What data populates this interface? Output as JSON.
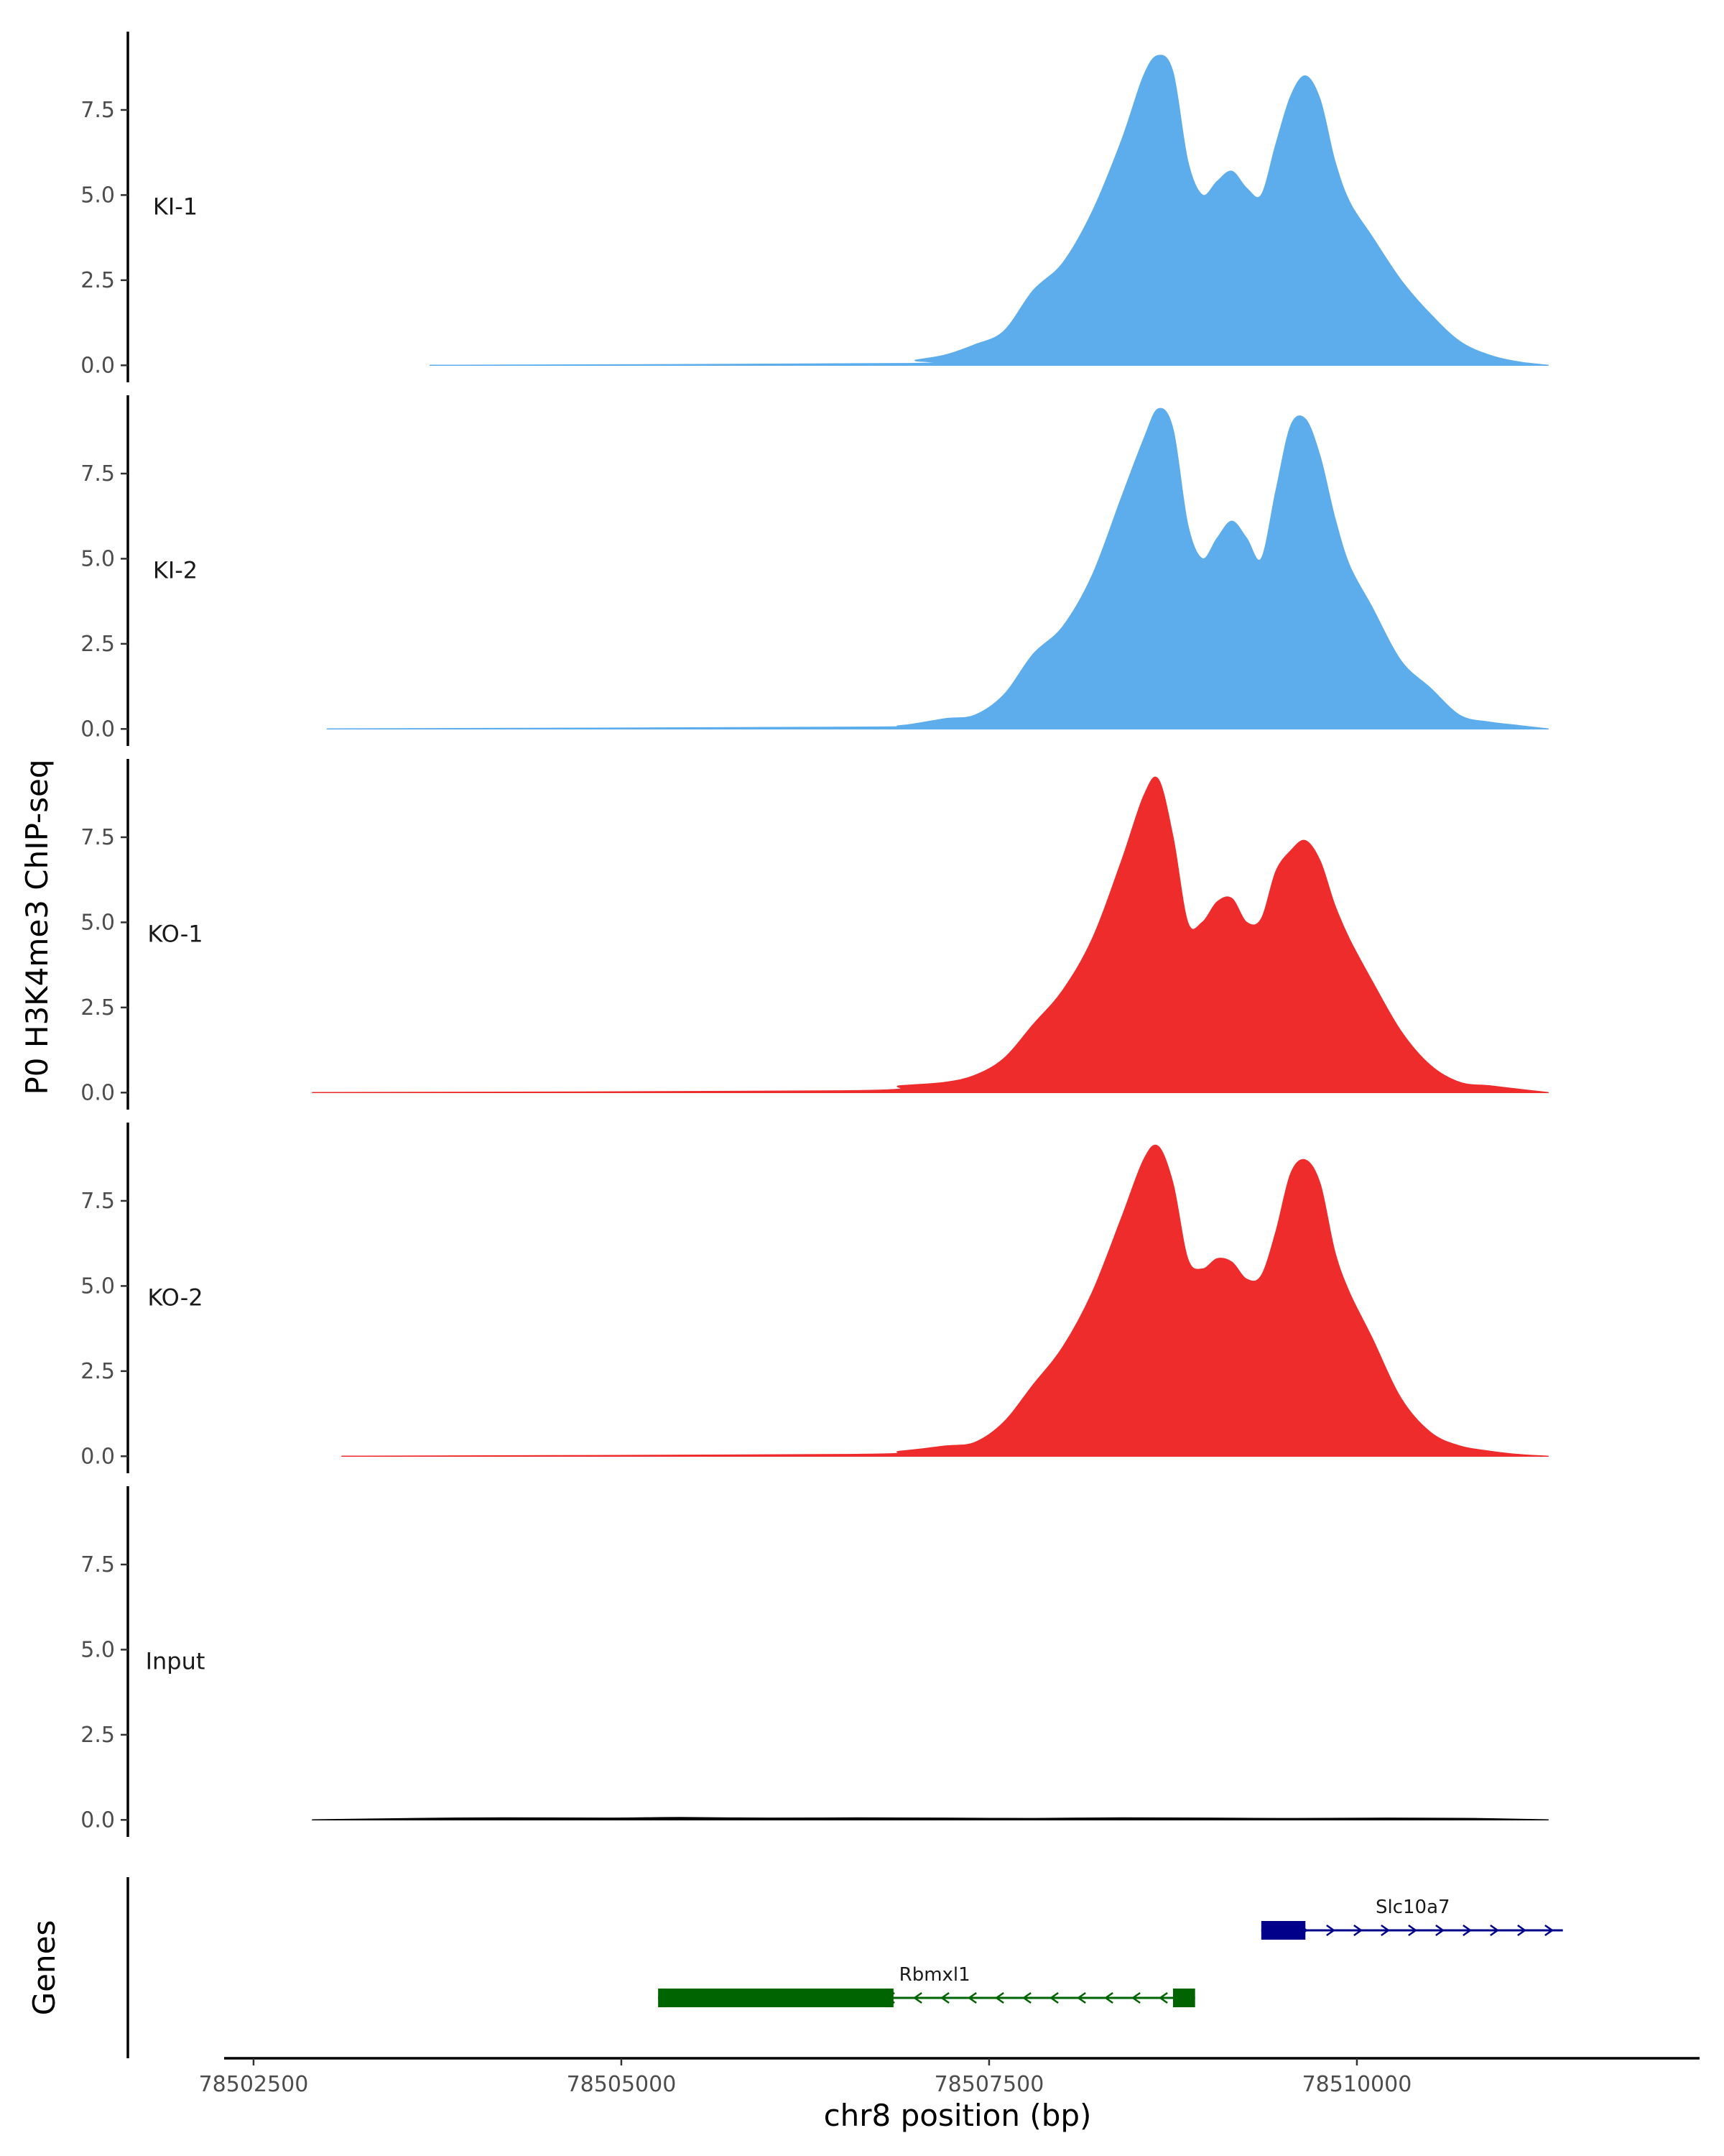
{
  "chart_data": {
    "type": "area",
    "ylabel": "P0 H3K4me3 ChIP-seq",
    "xlabel": "chr8 position (bp)",
    "xlim": [
      78502300,
      78512300
    ],
    "ylim": [
      -0.5,
      9.8
    ],
    "y_ticks": [
      0.0,
      2.5,
      5.0,
      7.5
    ],
    "y_tick_labels": [
      "0.0",
      "2.5",
      "5.0",
      "7.5"
    ],
    "x_ticks": [
      78502500,
      78505000,
      78507500,
      78510000
    ],
    "x_tick_labels": [
      "78502500",
      "78505000",
      "78507500",
      "78510000"
    ],
    "colors": {
      "ki": "#5DADEC",
      "ko": "#EE2C2C",
      "input": "#000000",
      "slc10a7": "#00008B",
      "rbmxl1": "#006400",
      "axis": "#000000"
    },
    "tracks": [
      {
        "name": "KI-1",
        "color": "#5DADEC",
        "x_start": 78503700,
        "x_end": 78511300,
        "x": [
          78503700,
          78506900,
          78507000,
          78507200,
          78507400,
          78507600,
          78507800,
          78508000,
          78508200,
          78508400,
          78508550,
          78508650,
          78508750,
          78508850,
          78508950,
          78509050,
          78509150,
          78509250,
          78509350,
          78509450,
          78509550,
          78509650,
          78509750,
          78509850,
          78509950,
          78510100,
          78510300,
          78510500,
          78510700,
          78510900,
          78511100,
          78511300
        ],
        "y": [
          0.0,
          0.05,
          0.15,
          0.3,
          0.6,
          1.0,
          2.2,
          3.0,
          4.5,
          6.6,
          8.5,
          9.1,
          8.6,
          6.0,
          5.0,
          5.4,
          5.7,
          5.2,
          5.0,
          6.5,
          7.9,
          8.5,
          7.8,
          6.0,
          4.8,
          3.8,
          2.5,
          1.5,
          0.7,
          0.3,
          0.1,
          0.0
        ]
      },
      {
        "name": "KI-2",
        "color": "#5DADEC",
        "x_start": 78503000,
        "x_end": 78511300,
        "x": [
          78503000,
          78506500,
          78506900,
          78507200,
          78507400,
          78507600,
          78507800,
          78508000,
          78508200,
          78508400,
          78508550,
          78508650,
          78508750,
          78508850,
          78508950,
          78509050,
          78509150,
          78509250,
          78509350,
          78509450,
          78509550,
          78509650,
          78509750,
          78509850,
          78509950,
          78510100,
          78510300,
          78510500,
          78510700,
          78510900,
          78511100,
          78511300
        ],
        "y": [
          0.0,
          0.05,
          0.1,
          0.3,
          0.4,
          1.0,
          2.2,
          3.0,
          4.5,
          6.8,
          8.5,
          9.4,
          8.8,
          6.0,
          5.0,
          5.6,
          6.1,
          5.6,
          5.0,
          7.0,
          8.9,
          9.1,
          8.0,
          6.2,
          4.8,
          3.6,
          2.0,
          1.2,
          0.4,
          0.2,
          0.1,
          0.0
        ]
      },
      {
        "name": "KO-1",
        "color": "#EE2C2C",
        "x_start": 78502900,
        "x_end": 78511300,
        "x": [
          78502900,
          78506500,
          78506900,
          78507200,
          78507400,
          78507600,
          78507800,
          78508000,
          78508200,
          78508400,
          78508550,
          78508650,
          78508750,
          78508850,
          78508950,
          78509050,
          78509150,
          78509250,
          78509350,
          78509450,
          78509550,
          78509650,
          78509750,
          78509850,
          78509950,
          78510100,
          78510300,
          78510500,
          78510700,
          78510900,
          78511100,
          78511300
        ],
        "y": [
          0.0,
          0.05,
          0.2,
          0.3,
          0.5,
          1.0,
          2.0,
          3.0,
          4.5,
          6.8,
          8.7,
          9.2,
          7.5,
          5.0,
          5.0,
          5.6,
          5.7,
          5.0,
          5.1,
          6.5,
          7.1,
          7.4,
          6.8,
          5.5,
          4.5,
          3.3,
          1.8,
          0.8,
          0.3,
          0.2,
          0.1,
          0.0
        ]
      },
      {
        "name": "KO-2",
        "color": "#EE2C2C",
        "x_start": 78503100,
        "x_end": 78511300,
        "x": [
          78503100,
          78506500,
          78506900,
          78507200,
          78507400,
          78507600,
          78507800,
          78508000,
          78508200,
          78508400,
          78508550,
          78508650,
          78508750,
          78508850,
          78508950,
          78509050,
          78509150,
          78509250,
          78509350,
          78509450,
          78509550,
          78509650,
          78509750,
          78509850,
          78509950,
          78510100,
          78510300,
          78510500,
          78510700,
          78510900,
          78511100,
          78511300
        ],
        "y": [
          0.0,
          0.05,
          0.15,
          0.3,
          0.4,
          1.0,
          2.1,
          3.2,
          4.8,
          7.0,
          8.7,
          9.1,
          8.0,
          5.8,
          5.5,
          5.8,
          5.7,
          5.2,
          5.3,
          6.6,
          8.3,
          8.7,
          8.0,
          6.0,
          4.8,
          3.5,
          1.7,
          0.7,
          0.3,
          0.15,
          0.05,
          0.0
        ]
      },
      {
        "name": "Input",
        "color": "#000000",
        "x_start": 78502900,
        "x_end": 78511300,
        "x": [
          78502900,
          78503600,
          78504200,
          78504900,
          78505400,
          78506000,
          78506600,
          78507200,
          78507800,
          78508400,
          78509000,
          78509600,
          78510200,
          78510800,
          78511300
        ],
        "y": [
          0.0,
          0.04,
          0.06,
          0.05,
          0.07,
          0.05,
          0.06,
          0.05,
          0.04,
          0.06,
          0.05,
          0.04,
          0.05,
          0.04,
          0.0
        ]
      }
    ],
    "genes_panel": {
      "label": "Genes",
      "genes": [
        {
          "name": "Slc10a7",
          "strand": "+",
          "color": "#00008B",
          "start": 78509350,
          "end": 78511400,
          "exons": [
            [
              78509350,
              78509650
            ]
          ],
          "row": 1
        },
        {
          "name": "Rbmxl1",
          "strand": "-",
          "color": "#006400",
          "start": 78505250,
          "end": 78508900,
          "exons": [
            [
              78505250,
              78506850
            ],
            [
              78508750,
              78508900
            ]
          ],
          "row": 2
        }
      ]
    }
  }
}
